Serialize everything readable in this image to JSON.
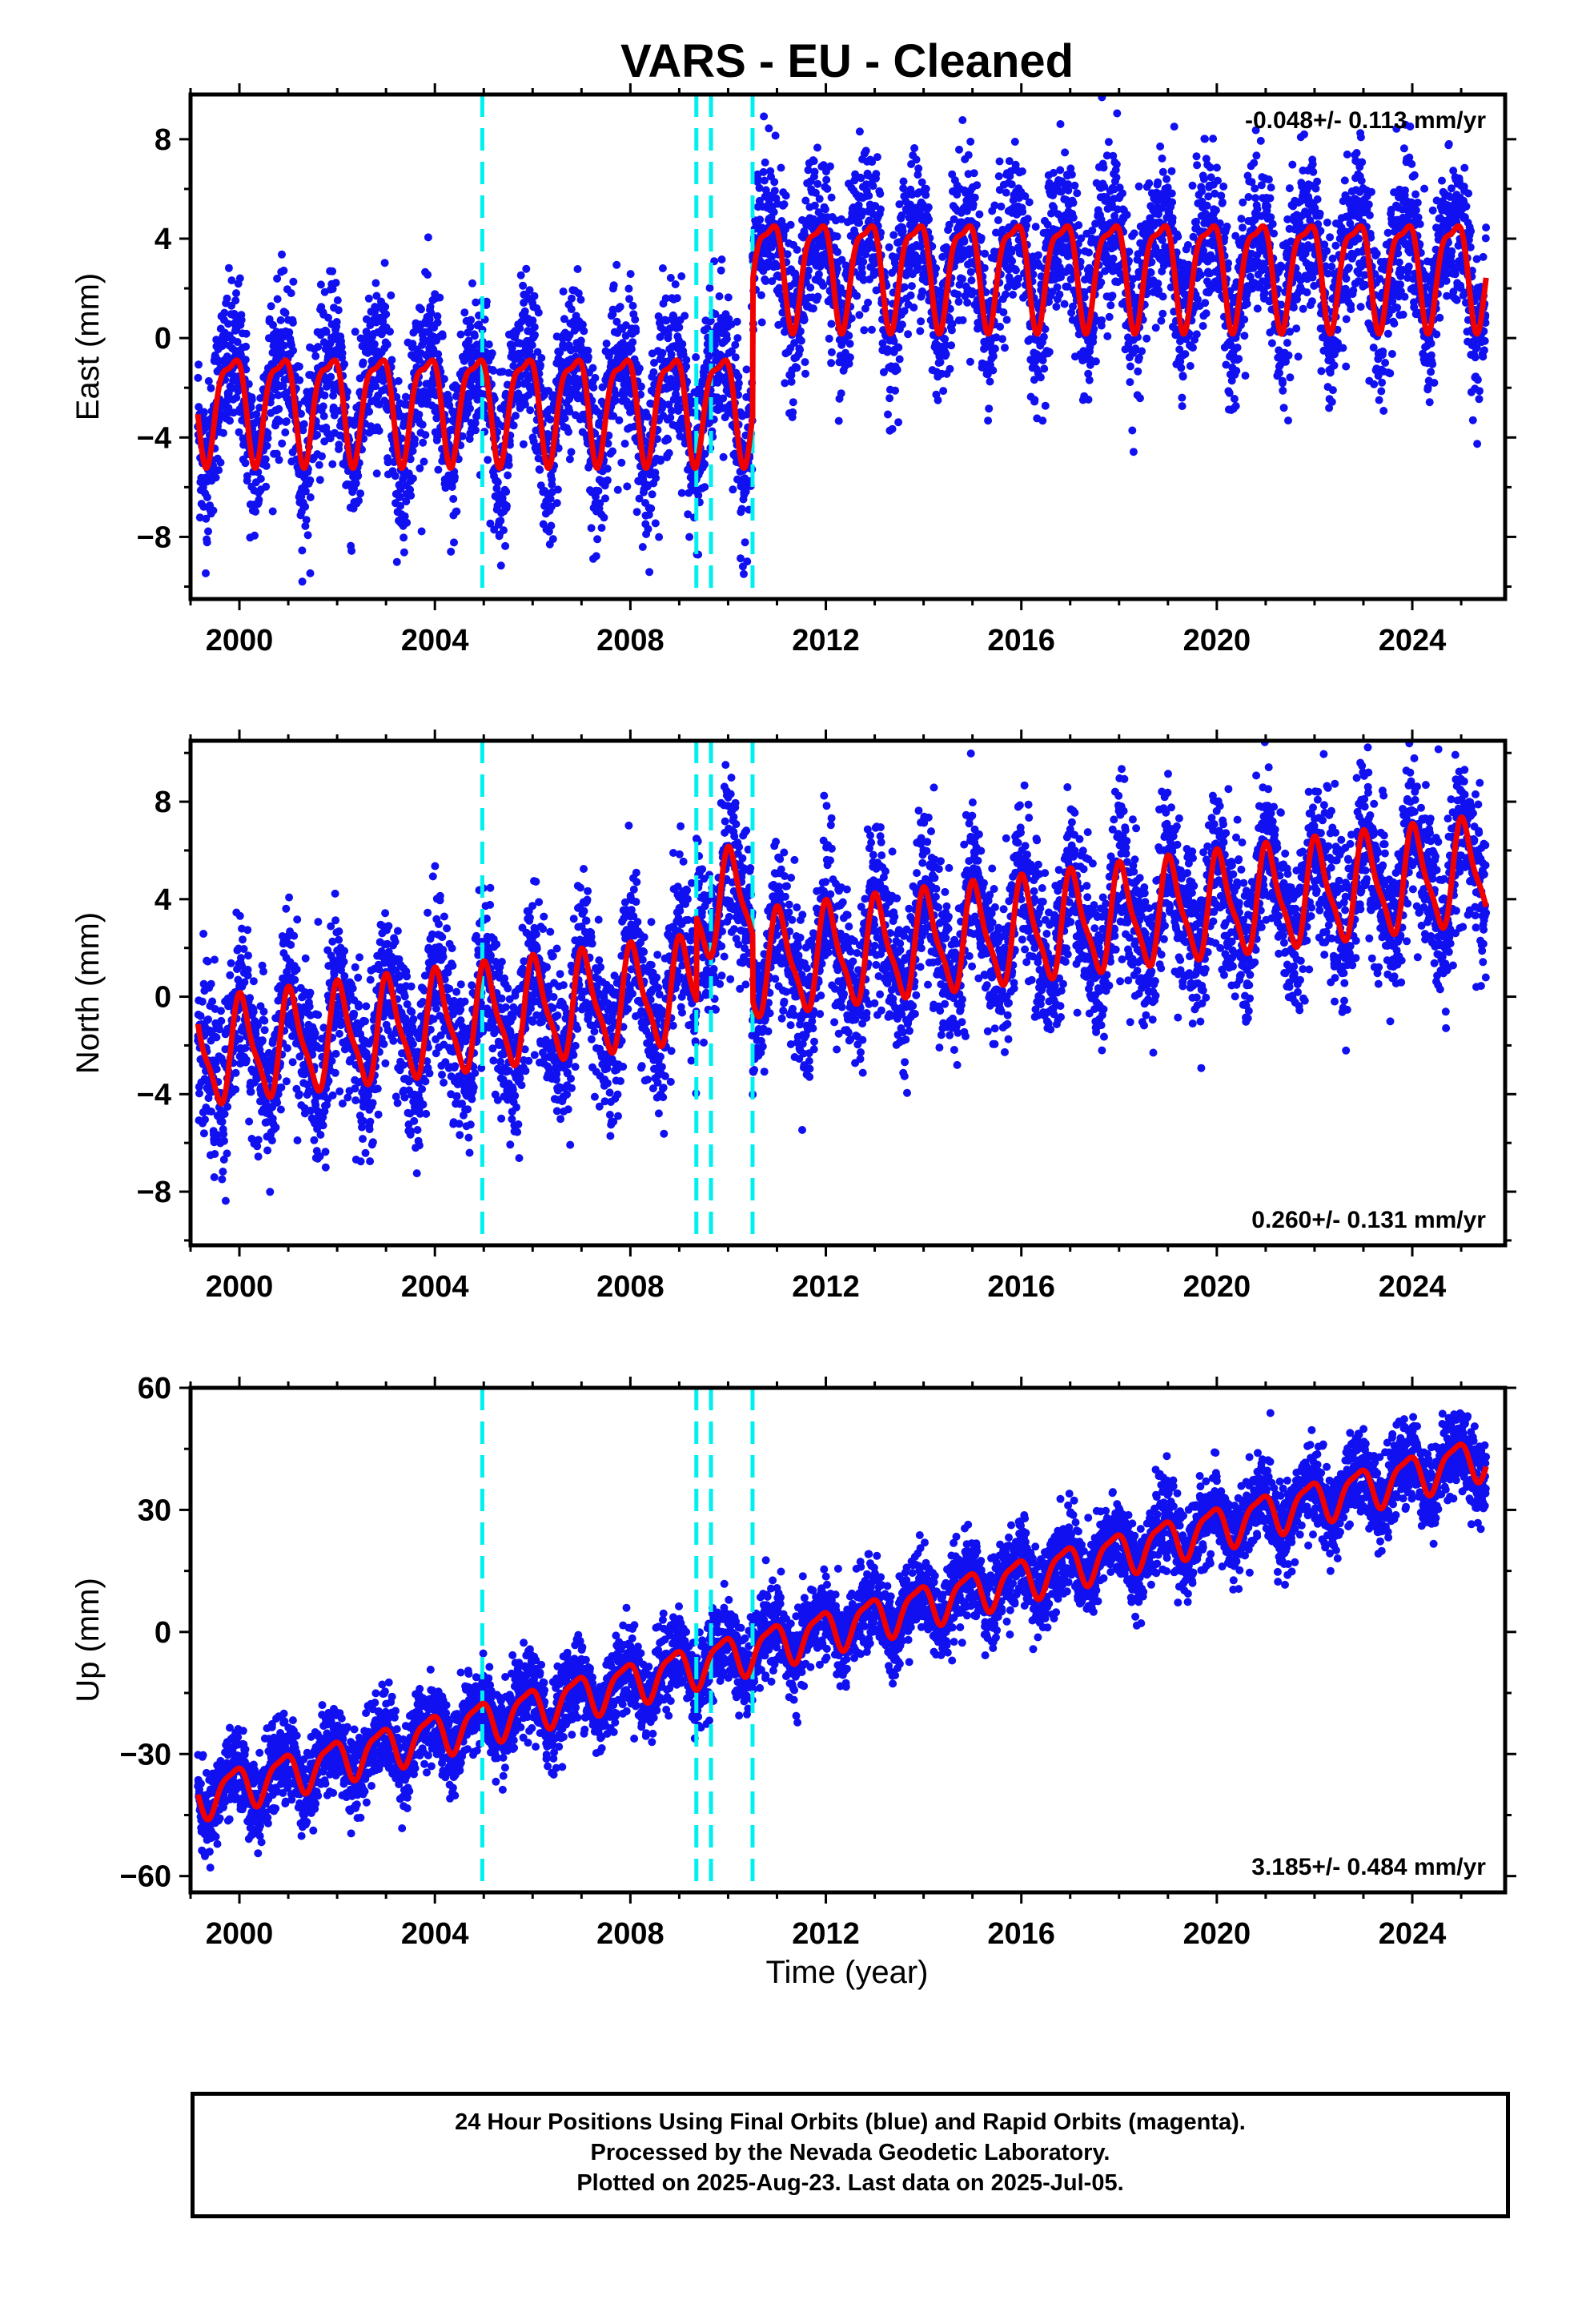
{
  "title": "VARS  - EU - Cleaned",
  "xlabel": "Time (year)",
  "footer": {
    "line1": "24 Hour Positions Using Final Orbits (blue) and Rapid Orbits (magenta).",
    "line2": "Processed by the Nevada Geodetic Laboratory.",
    "line3": "Plotted on 2025-Aug-23. Last data on 2025-Jul-05."
  },
  "colors": {
    "points": "#1010f0",
    "model": "#f00000",
    "offsets": "#00f0f0"
  },
  "chart_data": [
    {
      "type": "scatter",
      "ylabel": "East (mm)",
      "rate_label": "-0.048+/- 0.113 mm/yr",
      "rate_position": "top-right",
      "xlim": [
        1999.0,
        2025.9
      ],
      "ylim": [
        -10.5,
        9.8
      ],
      "xticks": [
        2000,
        2004,
        2008,
        2012,
        2016,
        2020,
        2024
      ],
      "yticks": [
        8,
        4,
        0,
        -4,
        -8
      ],
      "data_range": [
        1999.15,
        2025.51
      ],
      "offset_epochs": [
        2004.97,
        2009.35,
        2009.65,
        2010.5
      ],
      "model_steps": [
        {
          "epoch": 2010.5,
          "delta": 5.4
        }
      ],
      "model": {
        "base": -2.55,
        "trend": 0.0,
        "annual_amp": 2.05,
        "annual_phase": 2.6,
        "semi_amp": 0.65,
        "semi_phase": 0.8
      },
      "noise_mm": 1.9
    },
    {
      "type": "scatter",
      "ylabel": "North (mm)",
      "rate_label": "0.260+/- 0.131 mm/yr",
      "rate_position": "bottom-right",
      "xlim": [
        1999.0,
        2025.9
      ],
      "ylim": [
        -10.2,
        10.5
      ],
      "xticks": [
        2000,
        2004,
        2008,
        2012,
        2016,
        2020,
        2024
      ],
      "yticks": [
        8,
        4,
        0,
        -4,
        -8
      ],
      "data_range": [
        1999.15,
        2025.51
      ],
      "offset_epochs": [
        2004.97,
        2009.35,
        2009.65,
        2010.5
      ],
      "model_steps": [
        {
          "epoch": 2009.35,
          "delta": 3.4
        },
        {
          "epoch": 2010.5,
          "delta": -2.7
        }
      ],
      "model": {
        "base": -2.4,
        "trend": 0.26,
        "annual_amp": 2.0,
        "annual_phase": 1.2,
        "semi_amp": 0.55,
        "semi_phase": 2.1
      },
      "noise_mm": 1.9
    },
    {
      "type": "scatter",
      "ylabel": "Up (mm)",
      "rate_label": "3.185+/- 0.484 mm/yr",
      "rate_position": "bottom-right",
      "xlim": [
        1999.0,
        2025.9
      ],
      "ylim": [
        -64,
        60
      ],
      "xticks": [
        2000,
        2004,
        2008,
        2012,
        2016,
        2020,
        2024
      ],
      "yticks": [
        60,
        30,
        0,
        -30,
        -60
      ],
      "data_range": [
        1999.15,
        2025.51
      ],
      "offset_epochs": [
        2004.97,
        2009.35,
        2009.65,
        2010.5
      ],
      "model_steps": [],
      "model": {
        "base": -40.5,
        "trend": 3.185,
        "annual_amp": 5.0,
        "annual_phase": 2.3,
        "semi_amp": 1.4,
        "semi_phase": 0.4
      },
      "noise_mm": 6.0
    }
  ]
}
